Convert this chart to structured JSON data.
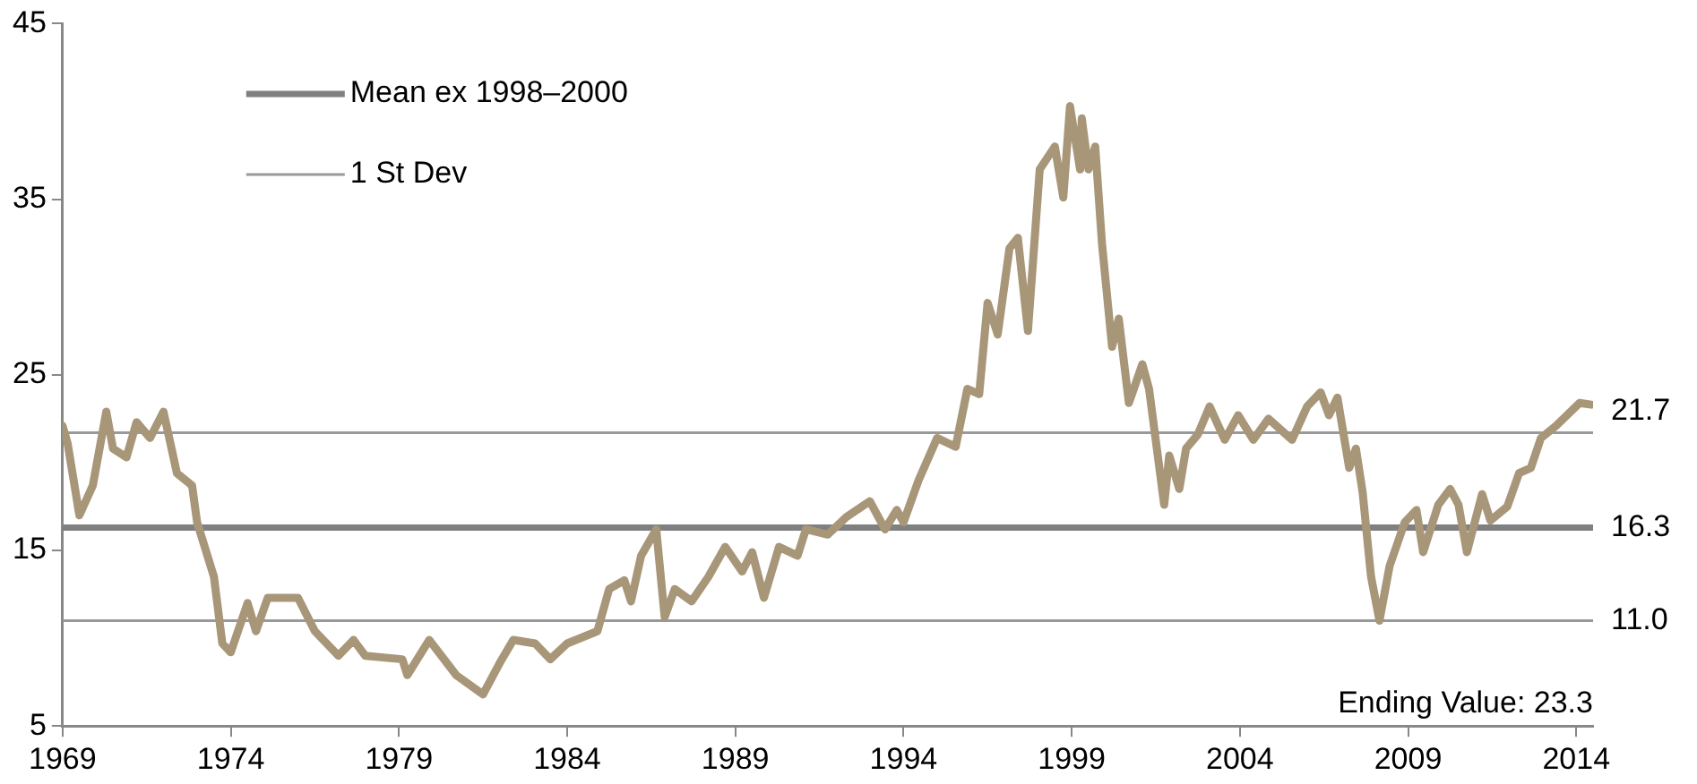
{
  "chart_data": {
    "type": "line",
    "xlim": [
      1969,
      2014.5
    ],
    "xticks": [
      1969,
      1974,
      1979,
      1984,
      1989,
      1994,
      1999,
      2004,
      2009,
      2014
    ],
    "ylim": [
      5,
      45
    ],
    "yticks": [
      5,
      15,
      25,
      35,
      45
    ],
    "grid": false,
    "legend": "top left",
    "marker": "none",
    "line_style": "solid",
    "annotations": [
      "Ending Value: 23.3"
    ],
    "series": [
      {
        "color": "#a89679",
        "x": [
          1969.0,
          1969.15,
          1969.5,
          1969.9,
          1970.3,
          1970.5,
          1970.9,
          1971.2,
          1971.6,
          1972.0,
          1972.4,
          1972.85,
          1973.0,
          1973.5,
          1973.75,
          1974.0,
          1974.5,
          1974.75,
          1975.1,
          1976.0,
          1976.5,
          1977.2,
          1977.65,
          1978.0,
          1979.1,
          1979.25,
          1979.9,
          1980.7,
          1981.5,
          1982.0,
          1982.4,
          1983.05,
          1983.5,
          1984.0,
          1984.9,
          1985.25,
          1985.7,
          1985.9,
          1986.2,
          1986.65,
          1986.9,
          1987.2,
          1987.7,
          1988.2,
          1988.7,
          1989.2,
          1989.5,
          1989.85,
          1990.3,
          1990.85,
          1991.1,
          1991.75,
          1992.3,
          1993.0,
          1993.45,
          1993.8,
          1994.0,
          1994.45,
          1995.0,
          1995.55,
          1995.9,
          1996.25,
          1996.5,
          1996.8,
          1997.15,
          1997.4,
          1997.7,
          1998.05,
          1998.5,
          1998.75,
          1998.95,
          1999.25,
          1999.3,
          1999.5,
          1999.7,
          1999.9,
          2000.2,
          2000.4,
          2000.7,
          2001.1,
          2001.3,
          2001.75,
          2001.9,
          2002.2,
          2002.4,
          2002.75,
          2003.1,
          2003.55,
          2003.95,
          2004.4,
          2004.85,
          2005.55,
          2006.0,
          2006.4,
          2006.65,
          2006.9,
          2007.25,
          2007.45,
          2007.65,
          2007.9,
          2008.15,
          2008.45,
          2008.9,
          2009.25,
          2009.45,
          2009.9,
          2010.25,
          2010.5,
          2010.75,
          2011.2,
          2011.45,
          2011.95,
          2012.3,
          2012.65,
          2012.95,
          2013.4,
          2014.1,
          2014.45
        ],
        "values": [
          22.1,
          21.1,
          17.0,
          18.7,
          22.9,
          20.8,
          20.3,
          22.3,
          21.4,
          22.9,
          19.4,
          18.7,
          16.6,
          13.5,
          9.7,
          9.2,
          12.0,
          10.4,
          12.3,
          12.3,
          10.4,
          9.0,
          9.9,
          9.0,
          8.8,
          7.9,
          9.9,
          7.9,
          6.8,
          8.6,
          9.9,
          9.7,
          8.8,
          9.7,
          10.4,
          12.8,
          13.3,
          12.1,
          14.7,
          16.2,
          11.2,
          12.8,
          12.1,
          13.5,
          15.2,
          13.8,
          14.9,
          12.3,
          15.2,
          14.7,
          16.2,
          15.9,
          16.9,
          17.8,
          16.2,
          17.3,
          16.6,
          19.0,
          21.4,
          20.9,
          24.2,
          23.9,
          29.1,
          27.3,
          32.2,
          32.8,
          27.5,
          36.7,
          38.0,
          35.1,
          40.3,
          36.7,
          39.6,
          36.7,
          38.0,
          32.5,
          26.6,
          28.2,
          23.4,
          25.6,
          24.2,
          17.6,
          20.4,
          18.5,
          20.8,
          21.6,
          23.2,
          21.3,
          22.7,
          21.3,
          22.5,
          21.3,
          23.2,
          24.0,
          22.7,
          23.7,
          19.7,
          20.8,
          18.3,
          13.5,
          11.0,
          14.1,
          16.6,
          17.3,
          14.9,
          17.6,
          18.5,
          17.6,
          14.9,
          18.2,
          16.7,
          17.5,
          19.4,
          19.7,
          21.4,
          22.1,
          23.4,
          23.3
        ]
      },
      {
        "name": "Mean ex 1998–2000",
        "color": "#808080",
        "x": [
          1969,
          2014.5
        ],
        "values": [
          16.3,
          16.3
        ],
        "value_labels": [
          null,
          "16.3"
        ]
      },
      {
        "name": "1 St Dev",
        "color": "#999999",
        "x": [
          1969,
          2014.5
        ],
        "values": [
          21.7,
          21.7
        ],
        "value_labels": [
          null,
          "21.7"
        ]
      },
      {
        "color": "#999999",
        "x": [
          1969,
          2014.5
        ],
        "values": [
          11.0,
          11.0
        ],
        "value_labels": [
          null,
          "11.0"
        ]
      }
    ]
  }
}
